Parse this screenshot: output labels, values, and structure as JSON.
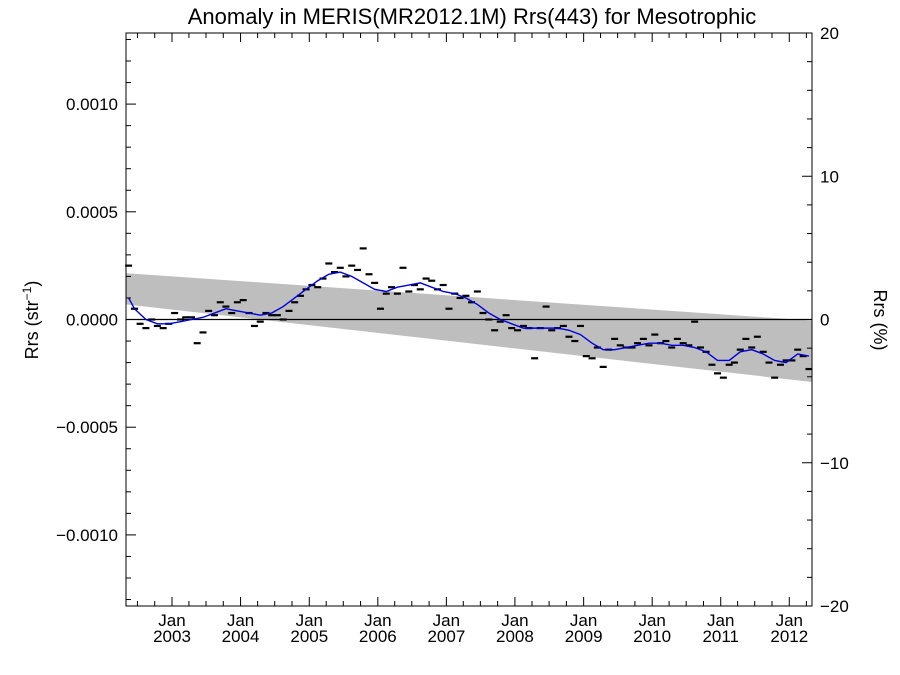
{
  "chart_data": {
    "type": "line",
    "title": "Anomaly in MERIS(MR2012.1M) Rrs(443) for Mesotrophic",
    "ylabel_main": "Rrs (str",
    "ylabel_sup": "−1",
    "ylabel_close": ")",
    "ylabel_right": "Rrs (%)",
    "xlim": [
      "2002-05-01",
      "2012-05-01"
    ],
    "ylim": [
      -0.00133,
      0.00133
    ],
    "ylim_right": [
      -20,
      20
    ],
    "grid": false,
    "x_ticks": [
      {
        "date": "2003-01-01",
        "line1": "Jan",
        "line2": "2003"
      },
      {
        "date": "2004-01-01",
        "line1": "Jan",
        "line2": "2004"
      },
      {
        "date": "2005-01-01",
        "line1": "Jan",
        "line2": "2005"
      },
      {
        "date": "2006-01-01",
        "line1": "Jan",
        "line2": "2006"
      },
      {
        "date": "2007-01-01",
        "line1": "Jan",
        "line2": "2007"
      },
      {
        "date": "2008-01-01",
        "line1": "Jan",
        "line2": "2008"
      },
      {
        "date": "2009-01-01",
        "line1": "Jan",
        "line2": "2009"
      },
      {
        "date": "2010-01-01",
        "line1": "Jan",
        "line2": "2010"
      },
      {
        "date": "2011-01-01",
        "line1": "Jan",
        "line2": "2011"
      },
      {
        "date": "2012-01-01",
        "line1": "Jan",
        "line2": "2012"
      }
    ],
    "y_ticks_left": [
      {
        "value": 0.001,
        "label": "0.0010"
      },
      {
        "value": 0.0005,
        "label": "0.0005"
      },
      {
        "value": 0,
        "label": "0.0000"
      },
      {
        "value": -0.0005,
        "label": "−0.0005"
      },
      {
        "value": -0.001,
        "label": "−0.0010"
      }
    ],
    "y_ticks_right": [
      {
        "value": 20,
        "label": "20"
      },
      {
        "value": 10,
        "label": "10"
      },
      {
        "value": 0,
        "label": "0"
      },
      {
        "value": -10,
        "label": "−10"
      },
      {
        "value": -20,
        "label": "−20"
      }
    ],
    "colors": {
      "band": "#bebebe",
      "smooth": "#0000dd",
      "points": "#000000",
      "axis": "#000000"
    },
    "uncertainty_band": {
      "start": {
        "x": "2002-05-01",
        "upper": 0.000215,
        "lower": 7e-05
      },
      "end": {
        "x": "2012-05-01",
        "upper": -5e-06,
        "lower": -0.00029
      }
    },
    "zero_line": 0,
    "monthly_anomalies": [
      {
        "x": "2002-05",
        "y": 0.00025
      },
      {
        "x": "2002-06",
        "y": 5e-05
      },
      {
        "x": "2002-07",
        "y": -2e-05
      },
      {
        "x": "2002-08",
        "y": -4e-05
      },
      {
        "x": "2002-09",
        "y": 0.0
      },
      {
        "x": "2002-10",
        "y": -3e-05
      },
      {
        "x": "2002-11",
        "y": -4e-05
      },
      {
        "x": "2002-12",
        "y": -2e-05
      },
      {
        "x": "2003-01",
        "y": 3e-05
      },
      {
        "x": "2003-02",
        "y": 0.0
      },
      {
        "x": "2003-03",
        "y": 1e-05
      },
      {
        "x": "2003-04",
        "y": 1e-05
      },
      {
        "x": "2003-05",
        "y": -0.00011
      },
      {
        "x": "2003-06",
        "y": -6e-05
      },
      {
        "x": "2003-07",
        "y": 4e-05
      },
      {
        "x": "2003-08",
        "y": 2e-05
      },
      {
        "x": "2003-09",
        "y": 8e-05
      },
      {
        "x": "2003-10",
        "y": 6e-05
      },
      {
        "x": "2003-11",
        "y": 3e-05
      },
      {
        "x": "2003-12",
        "y": 8e-05
      },
      {
        "x": "2004-01",
        "y": 9e-05
      },
      {
        "x": "2004-02",
        "y": 3e-05
      },
      {
        "x": "2004-03",
        "y": -3e-05
      },
      {
        "x": "2004-04",
        "y": -1e-05
      },
      {
        "x": "2004-05",
        "y": 3e-05
      },
      {
        "x": "2004-06",
        "y": 2e-05
      },
      {
        "x": "2004-07",
        "y": 2e-05
      },
      {
        "x": "2004-08",
        "y": 0.0
      },
      {
        "x": "2004-09",
        "y": 4e-05
      },
      {
        "x": "2004-10",
        "y": 8e-05
      },
      {
        "x": "2004-11",
        "y": 0.00011
      },
      {
        "x": "2004-12",
        "y": 0.00014
      },
      {
        "x": "2005-01",
        "y": 0.00016
      },
      {
        "x": "2005-02",
        "y": 0.00015
      },
      {
        "x": "2005-03",
        "y": 0.00019
      },
      {
        "x": "2005-04",
        "y": 0.00026
      },
      {
        "x": "2005-05",
        "y": 0.00022
      },
      {
        "x": "2005-06",
        "y": 0.00024
      },
      {
        "x": "2005-07",
        "y": 0.0002
      },
      {
        "x": "2005-08",
        "y": 0.00025
      },
      {
        "x": "2005-09",
        "y": 0.00023
      },
      {
        "x": "2005-10",
        "y": 0.00033
      },
      {
        "x": "2005-11",
        "y": 0.00021
      },
      {
        "x": "2005-12",
        "y": 0.00017
      },
      {
        "x": "2006-01",
        "y": 5e-05
      },
      {
        "x": "2006-02",
        "y": 0.00012
      },
      {
        "x": "2006-03",
        "y": 0.00015
      },
      {
        "x": "2006-04",
        "y": 0.00012
      },
      {
        "x": "2006-05",
        "y": 0.00024
      },
      {
        "x": "2006-06",
        "y": 0.00013
      },
      {
        "x": "2006-07",
        "y": 0.00016
      },
      {
        "x": "2006-08",
        "y": 0.00014
      },
      {
        "x": "2006-09",
        "y": 0.00019
      },
      {
        "x": "2006-10",
        "y": 0.00018
      },
      {
        "x": "2006-11",
        "y": 0.00014
      },
      {
        "x": "2006-12",
        "y": 0.00016
      },
      {
        "x": "2007-01",
        "y": 5e-05
      },
      {
        "x": "2007-02",
        "y": 0.00012
      },
      {
        "x": "2007-03",
        "y": 0.0001
      },
      {
        "x": "2007-04",
        "y": 0.00011
      },
      {
        "x": "2007-05",
        "y": 8e-05
      },
      {
        "x": "2007-06",
        "y": 0.00013
      },
      {
        "x": "2007-07",
        "y": 3e-05
      },
      {
        "x": "2007-08",
        "y": 0.0
      },
      {
        "x": "2007-09",
        "y": -5e-05
      },
      {
        "x": "2007-10",
        "y": -1e-05
      },
      {
        "x": "2007-11",
        "y": 2e-05
      },
      {
        "x": "2007-12",
        "y": -4e-05
      },
      {
        "x": "2008-01",
        "y": -5e-05
      },
      {
        "x": "2008-02",
        "y": -3e-05
      },
      {
        "x": "2008-03",
        "y": -4e-05
      },
      {
        "x": "2008-04",
        "y": -0.00018
      },
      {
        "x": "2008-05",
        "y": -4e-05
      },
      {
        "x": "2008-06",
        "y": 6e-05
      },
      {
        "x": "2008-07",
        "y": -5e-05
      },
      {
        "x": "2008-08",
        "y": -4e-05
      },
      {
        "x": "2008-09",
        "y": -3e-05
      },
      {
        "x": "2008-10",
        "y": -8e-05
      },
      {
        "x": "2008-11",
        "y": -0.0001
      },
      {
        "x": "2008-12",
        "y": -3e-05
      },
      {
        "x": "2009-01",
        "y": -0.00017
      },
      {
        "x": "2009-02",
        "y": -0.00018
      },
      {
        "x": "2009-03",
        "y": -0.00013
      },
      {
        "x": "2009-04",
        "y": -0.00022
      },
      {
        "x": "2009-05",
        "y": -0.00014
      },
      {
        "x": "2009-06",
        "y": -9e-05
      },
      {
        "x": "2009-07",
        "y": -0.00012
      },
      {
        "x": "2009-08",
        "y": -0.00013
      },
      {
        "x": "2009-09",
        "y": -0.00013
      },
      {
        "x": "2009-10",
        "y": -0.00011
      },
      {
        "x": "2009-11",
        "y": -9e-05
      },
      {
        "x": "2009-12",
        "y": -0.00012
      },
      {
        "x": "2010-01",
        "y": -7e-05
      },
      {
        "x": "2010-02",
        "y": -0.00011
      },
      {
        "x": "2010-03",
        "y": -0.0001
      },
      {
        "x": "2010-04",
        "y": -0.00013
      },
      {
        "x": "2010-05",
        "y": -9e-05
      },
      {
        "x": "2010-06",
        "y": -0.00011
      },
      {
        "x": "2010-07",
        "y": -0.00012
      },
      {
        "x": "2010-08",
        "y": -1e-05
      },
      {
        "x": "2010-09",
        "y": -0.00013
      },
      {
        "x": "2010-10",
        "y": -0.00015
      },
      {
        "x": "2010-11",
        "y": -0.00021
      },
      {
        "x": "2010-12",
        "y": -0.00025
      },
      {
        "x": "2011-01",
        "y": -0.00027
      },
      {
        "x": "2011-02",
        "y": -0.00021
      },
      {
        "x": "2011-03",
        "y": -0.0002
      },
      {
        "x": "2011-04",
        "y": -0.00014
      },
      {
        "x": "2011-05",
        "y": -9e-05
      },
      {
        "x": "2011-06",
        "y": -0.00013
      },
      {
        "x": "2011-07",
        "y": -8e-05
      },
      {
        "x": "2011-08",
        "y": -0.00015
      },
      {
        "x": "2011-09",
        "y": -0.0002
      },
      {
        "x": "2011-10",
        "y": -0.00027
      },
      {
        "x": "2011-11",
        "y": -0.00021
      },
      {
        "x": "2011-12",
        "y": -0.00019
      },
      {
        "x": "2012-01",
        "y": -0.00019
      },
      {
        "x": "2012-02",
        "y": -0.00014
      },
      {
        "x": "2012-03",
        "y": -0.00017
      },
      {
        "x": "2012-04",
        "y": -0.00023
      }
    ],
    "smoothed_anomaly": [
      {
        "x": "2002-05",
        "y": 0.0001
      },
      {
        "x": "2002-06",
        "y": 5e-05
      },
      {
        "x": "2002-08",
        "y": 0.0
      },
      {
        "x": "2002-10",
        "y": -2e-05
      },
      {
        "x": "2002-12",
        "y": -2e-05
      },
      {
        "x": "2003-02",
        "y": -1e-05
      },
      {
        "x": "2003-04",
        "y": 0.0
      },
      {
        "x": "2003-06",
        "y": 1e-05
      },
      {
        "x": "2003-08",
        "y": 3e-05
      },
      {
        "x": "2003-10",
        "y": 5e-05
      },
      {
        "x": "2003-12",
        "y": 4e-05
      },
      {
        "x": "2004-02",
        "y": 3e-05
      },
      {
        "x": "2004-04",
        "y": 2e-05
      },
      {
        "x": "2004-06",
        "y": 3e-05
      },
      {
        "x": "2004-08",
        "y": 6e-05
      },
      {
        "x": "2004-10",
        "y": 0.0001
      },
      {
        "x": "2004-12",
        "y": 0.00014
      },
      {
        "x": "2005-02",
        "y": 0.00018
      },
      {
        "x": "2005-04",
        "y": 0.00021
      },
      {
        "x": "2005-06",
        "y": 0.00022
      },
      {
        "x": "2005-08",
        "y": 0.0002
      },
      {
        "x": "2005-10",
        "y": 0.00017
      },
      {
        "x": "2005-12",
        "y": 0.00014
      },
      {
        "x": "2006-02",
        "y": 0.00013
      },
      {
        "x": "2006-04",
        "y": 0.00015
      },
      {
        "x": "2006-06",
        "y": 0.00016
      },
      {
        "x": "2006-08",
        "y": 0.00017
      },
      {
        "x": "2006-10",
        "y": 0.00015
      },
      {
        "x": "2006-12",
        "y": 0.00013
      },
      {
        "x": "2007-02",
        "y": 0.00012
      },
      {
        "x": "2007-04",
        "y": 0.0001
      },
      {
        "x": "2007-06",
        "y": 7e-05
      },
      {
        "x": "2007-08",
        "y": 3e-05
      },
      {
        "x": "2007-10",
        "y": 0.0
      },
      {
        "x": "2007-12",
        "y": -2e-05
      },
      {
        "x": "2008-02",
        "y": -4e-05
      },
      {
        "x": "2008-04",
        "y": -4e-05
      },
      {
        "x": "2008-06",
        "y": -4e-05
      },
      {
        "x": "2008-08",
        "y": -4e-05
      },
      {
        "x": "2008-10",
        "y": -5e-05
      },
      {
        "x": "2008-12",
        "y": -7e-05
      },
      {
        "x": "2009-02",
        "y": -0.00011
      },
      {
        "x": "2009-04",
        "y": -0.00014
      },
      {
        "x": "2009-06",
        "y": -0.00014
      },
      {
        "x": "2009-08",
        "y": -0.00013
      },
      {
        "x": "2009-10",
        "y": -0.00012
      },
      {
        "x": "2009-12",
        "y": -0.00011
      },
      {
        "x": "2010-02",
        "y": -0.00011
      },
      {
        "x": "2010-04",
        "y": -0.00012
      },
      {
        "x": "2010-06",
        "y": -0.00012
      },
      {
        "x": "2010-08",
        "y": -0.00013
      },
      {
        "x": "2010-10",
        "y": -0.00015
      },
      {
        "x": "2010-12",
        "y": -0.00019
      },
      {
        "x": "2011-02",
        "y": -0.00019
      },
      {
        "x": "2011-04",
        "y": -0.00015
      },
      {
        "x": "2011-06",
        "y": -0.00014
      },
      {
        "x": "2011-08",
        "y": -0.00016
      },
      {
        "x": "2011-10",
        "y": -0.00019
      },
      {
        "x": "2011-12",
        "y": -0.0002
      },
      {
        "x": "2012-02",
        "y": -0.00016
      },
      {
        "x": "2012-04",
        "y": -0.00017
      }
    ]
  }
}
